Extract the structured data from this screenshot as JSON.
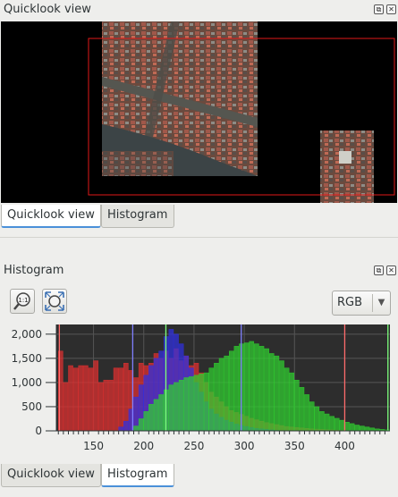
{
  "quicklook_panel": {
    "title": "Quicklook view"
  },
  "histogram_panel": {
    "title": "Histogram"
  },
  "tabs_top": [
    {
      "label": "Quicklook view",
      "active": true
    },
    {
      "label": "Histogram",
      "active": false
    }
  ],
  "tabs_bottom": [
    {
      "label": "Quicklook view",
      "active": false
    },
    {
      "label": "Histogram",
      "active": true
    }
  ],
  "toolbar": {
    "zoom_reset_icon": "zoom-1-to-1-icon",
    "zoom_fit_icon": "zoom-fit-icon",
    "channel": "RGB"
  },
  "chart_data": {
    "type": "bar",
    "xlim": [
      113,
      445
    ],
    "ylim": [
      0,
      2200
    ],
    "x_ticks": [
      150,
      200,
      250,
      300,
      350,
      400
    ],
    "y_ticks": [
      0,
      500,
      1000,
      1500,
      2000
    ],
    "y_tick_labels": [
      "0",
      "500",
      "1,000",
      "1,500",
      "2,000"
    ],
    "bin_width": 5,
    "grid": true,
    "series": [
      {
        "color": "#e03030",
        "x": [
          115,
          120,
          125,
          130,
          135,
          140,
          145,
          150,
          155,
          160,
          165,
          170,
          175,
          180,
          185,
          190,
          195,
          200,
          205,
          210,
          215,
          220,
          225,
          230,
          235,
          240,
          245,
          250,
          255,
          260,
          265,
          270,
          275,
          280,
          285,
          290,
          295,
          300,
          305,
          310,
          315,
          320,
          325,
          330,
          335,
          340,
          345,
          350,
          355,
          360,
          365,
          370,
          375,
          380,
          385,
          390,
          395,
          400
        ],
        "y": [
          1650,
          1000,
          1350,
          1300,
          1350,
          1350,
          1300,
          1450,
          1000,
          1050,
          1050,
          1300,
          1300,
          1400,
          1250,
          1100,
          1400,
          1350,
          1400,
          1600,
          1500,
          1650,
          1500,
          1700,
          1450,
          1550,
          1350,
          1400,
          1200,
          1000,
          800,
          700,
          600,
          500,
          420,
          380,
          340,
          300,
          260,
          230,
          200,
          170,
          150,
          130,
          110,
          90,
          80,
          70,
          60,
          50,
          40,
          35,
          30,
          25,
          20,
          15,
          10,
          5
        ]
      },
      {
        "color": "#3030e0",
        "x": [
          175,
          180,
          185,
          190,
          195,
          200,
          205,
          210,
          215,
          220,
          225,
          230,
          235,
          240,
          245,
          250,
          255,
          260,
          265,
          270,
          275,
          280,
          285,
          290,
          295,
          300,
          305,
          310,
          315,
          320,
          325,
          330
        ],
        "y": [
          80,
          200,
          450,
          700,
          950,
          1150,
          1350,
          1500,
          1650,
          1950,
          2100,
          2000,
          1800,
          1550,
          1300,
          1000,
          800,
          600,
          450,
          350,
          280,
          220,
          180,
          140,
          110,
          90,
          70,
          50,
          40,
          30,
          20,
          10
        ]
      },
      {
        "color": "#30d030",
        "x": [
          190,
          195,
          200,
          205,
          210,
          215,
          220,
          225,
          230,
          235,
          240,
          245,
          250,
          255,
          260,
          265,
          270,
          275,
          280,
          285,
          290,
          295,
          300,
          305,
          310,
          315,
          320,
          325,
          330,
          335,
          340,
          345,
          350,
          355,
          360,
          365,
          370,
          375,
          380,
          385,
          390,
          395,
          400,
          405,
          410,
          415,
          420,
          425,
          430,
          435,
          440
        ],
        "y": [
          100,
          250,
          400,
          550,
          650,
          750,
          850,
          950,
          1000,
          1050,
          1100,
          1120,
          1150,
          1180,
          1200,
          1300,
          1400,
          1500,
          1550,
          1650,
          1750,
          1800,
          1820,
          1850,
          1800,
          1750,
          1700,
          1600,
          1550,
          1450,
          1300,
          1200,
          1050,
          900,
          750,
          600,
          500,
          400,
          350,
          300,
          260,
          220,
          180,
          150,
          120,
          100,
          80,
          60,
          40,
          30,
          20
        ]
      }
    ],
    "vlines": [
      {
        "x": 116,
        "color": "#ff6b6b"
      },
      {
        "x": 400,
        "color": "#ff6b6b"
      },
      {
        "x": 189,
        "color": "#8080ff"
      },
      {
        "x": 297,
        "color": "#8080ff"
      },
      {
        "x": 222,
        "color": "#7cff7c"
      },
      {
        "x": 443,
        "color": "#7cff7c"
      }
    ]
  }
}
